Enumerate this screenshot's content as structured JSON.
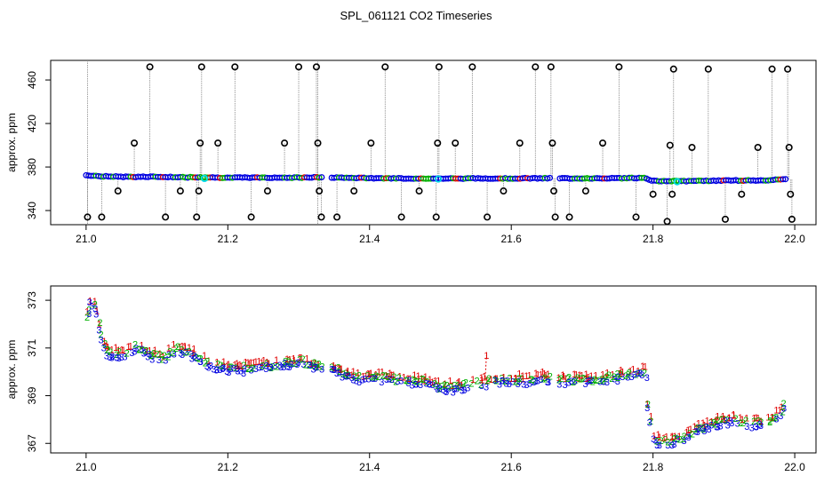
{
  "title": "SPL_061121  CO2 Timeseries",
  "colors": {
    "series1": "#e00000",
    "series2": "#00b000",
    "series3": "#0000e0",
    "outlier": "#000000",
    "highlight": "#00d8e8",
    "dropline": "#8c8c8c"
  },
  "chart_data": [
    {
      "type": "scatter",
      "ylabel": "approx. ppm",
      "xlim": [
        20.95,
        22.03
      ],
      "ylim": [
        327,
        478
      ],
      "xticks": [
        "21.0",
        "21.2",
        "21.4",
        "21.6",
        "21.8",
        "22.0"
      ],
      "yticks": [
        "340",
        "380",
        "420",
        "460"
      ],
      "baseline": [
        [
          21.0,
          372.5
        ],
        [
          21.02,
          371.5
        ],
        [
          21.05,
          371
        ],
        [
          21.1,
          371
        ],
        [
          21.16,
          370.5
        ],
        [
          21.2,
          370.2
        ],
        [
          21.3,
          370.3
        ],
        [
          21.33,
          370.5
        ],
        [
          21.4,
          369.8
        ],
        [
          21.5,
          369.4
        ],
        [
          21.6,
          369.6
        ],
        [
          21.66,
          369.6
        ],
        [
          21.7,
          369.6
        ],
        [
          21.79,
          369.9
        ],
        [
          21.8,
          367.2
        ],
        [
          21.85,
          367.0
        ],
        [
          21.9,
          367.6
        ],
        [
          21.96,
          367.8
        ],
        [
          21.985,
          368.5
        ]
      ],
      "outliers": [
        [
          21.002,
          334
        ],
        [
          21.022,
          334
        ],
        [
          21.045,
          358
        ],
        [
          21.068,
          402
        ],
        [
          21.09,
          472
        ],
        [
          21.112,
          334
        ],
        [
          21.133,
          358
        ],
        [
          21.156,
          334
        ],
        [
          21.159,
          358
        ],
        [
          21.161,
          402
        ],
        [
          21.163,
          472
        ],
        [
          21.186,
          402
        ],
        [
          21.21,
          472
        ],
        [
          21.233,
          334
        ],
        [
          21.256,
          358
        ],
        [
          21.28,
          402
        ],
        [
          21.3,
          472
        ],
        [
          21.325,
          472
        ],
        [
          21.327,
          402
        ],
        [
          21.329,
          358
        ],
        [
          21.332,
          334
        ],
        [
          21.354,
          334
        ],
        [
          21.378,
          358
        ],
        [
          21.402,
          402
        ],
        [
          21.422,
          472
        ],
        [
          21.445,
          334
        ],
        [
          21.47,
          358
        ],
        [
          21.494,
          334
        ],
        [
          21.496,
          402
        ],
        [
          21.498,
          472
        ],
        [
          21.521,
          402
        ],
        [
          21.545,
          472
        ],
        [
          21.566,
          334
        ],
        [
          21.589,
          358
        ],
        [
          21.612,
          402
        ],
        [
          21.634,
          472
        ],
        [
          21.656,
          472
        ],
        [
          21.658,
          402
        ],
        [
          21.66,
          358
        ],
        [
          21.662,
          334
        ],
        [
          21.682,
          334
        ],
        [
          21.705,
          358
        ],
        [
          21.729,
          402
        ],
        [
          21.752,
          472
        ],
        [
          21.776,
          334
        ],
        [
          21.8,
          355
        ],
        [
          21.82,
          330
        ],
        [
          21.824,
          400
        ],
        [
          21.827,
          355
        ],
        [
          21.829,
          470
        ],
        [
          21.855,
          398
        ],
        [
          21.878,
          470
        ],
        [
          21.902,
          332
        ],
        [
          21.925,
          355
        ],
        [
          21.948,
          398
        ],
        [
          21.968,
          470
        ],
        [
          21.99,
          470
        ],
        [
          21.992,
          398
        ],
        [
          21.994,
          355
        ],
        [
          21.996,
          332
        ]
      ],
      "highlights": [
        [
          21.167,
          369.5
        ],
        [
          21.497,
          369.0
        ],
        [
          21.834,
          366.5
        ]
      ]
    },
    {
      "type": "scatter",
      "ylabel": "approx. ppm",
      "xlim": [
        20.95,
        22.03
      ],
      "ylim": [
        366.6,
        373.6
      ],
      "xticks": [
        "21.0",
        "21.2",
        "21.4",
        "21.6",
        "21.8",
        "22.0"
      ],
      "yticks": [
        "367",
        "369",
        "371",
        "373"
      ],
      "point_labels": [
        "1",
        "2",
        "3"
      ],
      "series": [
        {
          "label": "1",
          "color": "#e00000"
        },
        {
          "label": "2",
          "color": "#00b000"
        },
        {
          "label": "3",
          "color": "#0000e0"
        }
      ],
      "gaps": [
        [
          21.335,
          21.345
        ],
        [
          21.655,
          21.668
        ]
      ],
      "spikes": [
        [
          21.565,
          370.7
        ]
      ],
      "profile": [
        [
          21.0,
          372.4
        ],
        [
          21.008,
          373.1
        ],
        [
          21.015,
          372.6
        ],
        [
          21.022,
          371.6
        ],
        [
          21.028,
          370.9
        ],
        [
          21.04,
          370.8
        ],
        [
          21.055,
          370.8
        ],
        [
          21.07,
          371.1
        ],
        [
          21.08,
          371.0
        ],
        [
          21.09,
          370.8
        ],
        [
          21.1,
          370.7
        ],
        [
          21.11,
          370.6
        ],
        [
          21.12,
          370.9
        ],
        [
          21.13,
          371.0
        ],
        [
          21.14,
          370.9
        ],
        [
          21.15,
          370.8
        ],
        [
          21.16,
          370.6
        ],
        [
          21.17,
          370.4
        ],
        [
          21.18,
          370.3
        ],
        [
          21.2,
          370.2
        ],
        [
          21.22,
          370.2
        ],
        [
          21.24,
          370.3
        ],
        [
          21.26,
          370.3
        ],
        [
          21.28,
          370.4
        ],
        [
          21.3,
          370.5
        ],
        [
          21.32,
          370.3
        ],
        [
          21.335,
          370.3
        ],
        [
          21.345,
          370.3
        ],
        [
          21.36,
          370.0
        ],
        [
          21.38,
          369.8
        ],
        [
          21.4,
          369.8
        ],
        [
          21.42,
          369.8
        ],
        [
          21.44,
          369.7
        ],
        [
          21.46,
          369.7
        ],
        [
          21.48,
          369.6
        ],
        [
          21.5,
          369.4
        ],
        [
          21.52,
          369.4
        ],
        [
          21.54,
          369.5
        ],
        [
          21.56,
          369.6
        ],
        [
          21.58,
          369.7
        ],
        [
          21.6,
          369.7
        ],
        [
          21.62,
          369.7
        ],
        [
          21.64,
          369.8
        ],
        [
          21.655,
          369.8
        ],
        [
          21.668,
          369.7
        ],
        [
          21.68,
          369.7
        ],
        [
          21.7,
          369.7
        ],
        [
          21.72,
          369.7
        ],
        [
          21.74,
          369.8
        ],
        [
          21.76,
          369.9
        ],
        [
          21.775,
          370.0
        ],
        [
          21.79,
          370.1
        ],
        [
          21.794,
          368.5
        ],
        [
          21.8,
          367.3
        ],
        [
          21.81,
          367.1
        ],
        [
          21.82,
          367.1
        ],
        [
          21.83,
          367.2
        ],
        [
          21.84,
          367.3
        ],
        [
          21.85,
          367.4
        ],
        [
          21.86,
          367.6
        ],
        [
          21.87,
          367.7
        ],
        [
          21.88,
          367.8
        ],
        [
          21.89,
          367.9
        ],
        [
          21.9,
          368.0
        ],
        [
          21.91,
          368.0
        ],
        [
          21.92,
          368.0
        ],
        [
          21.93,
          367.9
        ],
        [
          21.94,
          367.9
        ],
        [
          21.95,
          367.9
        ],
        [
          21.96,
          367.9
        ],
        [
          21.97,
          368.0
        ],
        [
          21.98,
          368.3
        ],
        [
          21.985,
          368.6
        ]
      ]
    }
  ]
}
